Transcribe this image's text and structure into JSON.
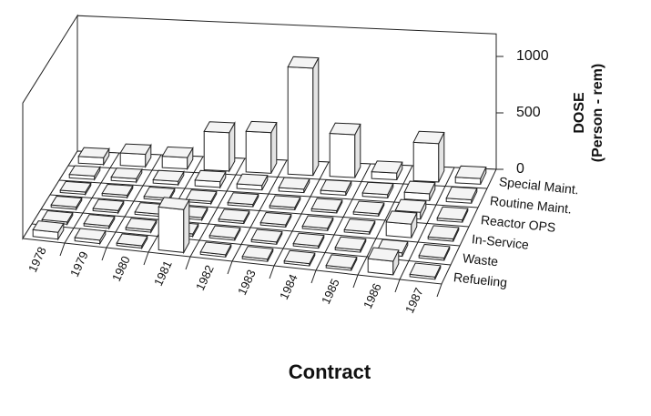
{
  "chart_data": {
    "type": "bar3d",
    "title": "Contract",
    "zlabel": [
      "DOSE",
      "(Person - rem)"
    ],
    "categories": [
      "1978",
      "1979",
      "1980",
      "1981",
      "1982",
      "1983",
      "1984",
      "1985",
      "1986",
      "1987"
    ],
    "series": [
      {
        "name": "Special Maint.",
        "values": [
          60,
          110,
          100,
          340,
          360,
          950,
          380,
          60,
          340,
          50
        ]
      },
      {
        "name": "Routine Maint.",
        "values": [
          30,
          30,
          30,
          50,
          40,
          30,
          30,
          30,
          60,
          30
        ]
      },
      {
        "name": "Reactor OPS",
        "values": [
          20,
          20,
          20,
          20,
          20,
          20,
          20,
          20,
          60,
          20
        ]
      },
      {
        "name": "In-Service",
        "values": [
          20,
          20,
          20,
          20,
          20,
          20,
          20,
          20,
          120,
          20
        ]
      },
      {
        "name": "Waste",
        "values": [
          20,
          20,
          20,
          20,
          20,
          20,
          20,
          20,
          30,
          20
        ]
      },
      {
        "name": "Refueling",
        "values": [
          60,
          30,
          20,
          380,
          20,
          20,
          20,
          20,
          120,
          20
        ]
      }
    ],
    "color": "#ffffff",
    "zlim": [
      0,
      1000
    ],
    "zticks": [
      0,
      500,
      1000
    ]
  }
}
